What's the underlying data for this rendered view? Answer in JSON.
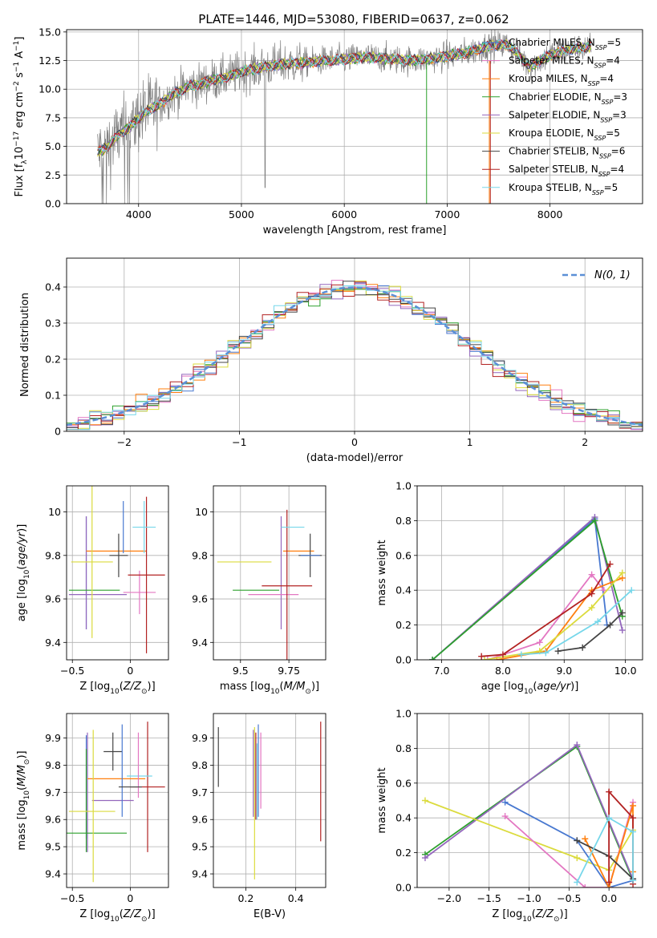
{
  "figure": {
    "title": "PLATE=1446, MJD=53080, FIBERID=0637, z=0.062"
  },
  "chart_data": [
    {
      "id": "spectrum",
      "type": "line",
      "xlabel": "wavelength [Angstrom, rest frame]",
      "ylabel": "Flux [f",
      "xlim": [
        3300,
        8900
      ],
      "ylim": [
        0,
        15.2
      ],
      "xticks": [
        4000,
        5000,
        6000,
        7000,
        8000
      ],
      "yticks": [
        0.0,
        2.5,
        5.0,
        7.5,
        10.0,
        12.5,
        15.0
      ],
      "legend_position": "top-right",
      "series": [
        {
          "name": "Chabrier MILES, N_SSP=5",
          "color": "#4878d0"
        },
        {
          "name": "Salpeter MILES, N_SSP=4",
          "color": "#e377c2"
        },
        {
          "name": "Kroupa MILES, N_SSP=4",
          "color": "#ff7f0e"
        },
        {
          "name": "Chabrier ELODIE, N_SSP=3",
          "color": "#2ca02c"
        },
        {
          "name": "Salpeter ELODIE, N_SSP=3",
          "color": "#9467bd"
        },
        {
          "name": "Kroupa ELODIE, N_SSP=5",
          "color": "#dbdb3d"
        },
        {
          "name": "Chabrier STELIB, N_SSP=6",
          "color": "#444444"
        },
        {
          "name": "Salpeter STELIB, N_SSP=4",
          "color": "#b22222"
        },
        {
          "name": "Kroupa STELIB, N_SSP=5",
          "color": "#76d7ea"
        }
      ],
      "continuum": {
        "x": [
          3600,
          3700,
          3800,
          3900,
          4000,
          4100,
          4200,
          4300,
          4400,
          4500,
          4600,
          4700,
          4800,
          4900,
          5000,
          5200,
          5400,
          5600,
          5800,
          6000,
          6200,
          6400,
          6600,
          6800,
          7000,
          7200,
          7400,
          7600,
          7800,
          8000,
          8200,
          8400
        ],
        "y": [
          4.5,
          5.0,
          6.0,
          6.6,
          7.5,
          8.2,
          8.6,
          9.4,
          9.8,
          10.3,
          10.4,
          10.8,
          10.9,
          11.2,
          11.5,
          11.9,
          12.2,
          12.3,
          12.5,
          12.6,
          12.8,
          12.7,
          12.5,
          12.6,
          12.9,
          13.2,
          13.8,
          13.9,
          12.0,
          13.0,
          13.5,
          13.7
        ]
      }
    },
    {
      "id": "residuals",
      "type": "line",
      "xlabel": "(data-model)/error",
      "ylabel": "Normed distribution",
      "xlim": [
        -2.5,
        2.5
      ],
      "ylim": [
        0,
        0.48
      ],
      "xticks": [
        -2,
        -1,
        0,
        1,
        2
      ],
      "yticks": [
        0.0,
        0.1,
        0.2,
        0.3,
        0.4
      ],
      "legend_position": "top-right",
      "legend_label": "N(0, 1)",
      "reference": {
        "mean": 0,
        "sigma": 1,
        "color": "#5b8fd6"
      },
      "histogram": {
        "bin_width": 0.1,
        "range": [
          -2.5,
          2.5
        ]
      }
    },
    {
      "id": "age_vs_Z",
      "type": "scatter",
      "xlabel": "Z [log",
      "ylabel": "age  [log",
      "xlim": [
        -0.55,
        0.33
      ],
      "ylim": [
        9.32,
        10.12
      ],
      "xticks": [
        -0.5,
        0.0
      ],
      "yticks": [
        9.4,
        9.6,
        9.8,
        10.0
      ],
      "points": [
        {
          "x": -0.38,
          "y": 9.72,
          "xerr": 0.0,
          "yerr": 0.26,
          "color": "#4878d0"
        },
        {
          "x": -0.38,
          "y": 9.72,
          "xerr": 0.0,
          "yerr": 0.26,
          "color": "#9467bd"
        },
        {
          "x": 0.08,
          "y": 9.63,
          "xerr": 0.14,
          "yerr": 0.1,
          "color": "#e377c2"
        },
        {
          "x": -0.12,
          "y": 9.82,
          "xerr": 0.26,
          "yerr": 0.0,
          "color": "#ff7f0e"
        },
        {
          "x": -0.31,
          "y": 9.64,
          "xerr": 0.22,
          "yerr": 0.0,
          "color": "#2ca02c"
        },
        {
          "x": -0.28,
          "y": 9.62,
          "xerr": 0.25,
          "yerr": 0.0,
          "color": "#9467bd"
        },
        {
          "x": -0.33,
          "y": 9.77,
          "xerr": 0.18,
          "yerr": 0.35,
          "color": "#dbdb3d"
        },
        {
          "x": -0.1,
          "y": 9.8,
          "xerr": 0.08,
          "yerr": 0.1,
          "color": "#444444"
        },
        {
          "x": 0.14,
          "y": 9.71,
          "xerr": 0.16,
          "yerr": 0.36,
          "color": "#b22222"
        },
        {
          "x": 0.12,
          "y": 9.93,
          "xerr": 0.1,
          "yerr": 0.12,
          "color": "#76d7ea"
        },
        {
          "x": -0.06,
          "y": 9.93,
          "xerr": 0.0,
          "yerr": 0.12,
          "color": "#4878d0"
        }
      ]
    },
    {
      "id": "age_vs_mass",
      "type": "scatter",
      "xlabel": "mass [log",
      "ylabel": "",
      "xlim": [
        9.36,
        9.94
      ],
      "ylim": [
        9.32,
        10.12
      ],
      "xticks": [
        9.5,
        9.75
      ],
      "yticks": [
        9.4,
        9.6,
        9.8,
        10.0
      ],
      "points": [
        {
          "x": 9.71,
          "y": 9.72,
          "xerr": 0.0,
          "yerr": 0.26,
          "color": "#9467bd"
        },
        {
          "x": 9.8,
          "y": 9.82,
          "xerr": 0.08,
          "yerr": 0.0,
          "color": "#ff7f0e"
        },
        {
          "x": 9.58,
          "y": 9.64,
          "xerr": 0.12,
          "yerr": 0.0,
          "color": "#2ca02c"
        },
        {
          "x": 9.67,
          "y": 9.62,
          "xerr": 0.13,
          "yerr": 0.0,
          "color": "#e377c2"
        },
        {
          "x": 9.52,
          "y": 9.77,
          "xerr": 0.14,
          "yerr": 0.0,
          "color": "#dbdb3d"
        },
        {
          "x": 9.86,
          "y": 9.8,
          "xerr": 0.06,
          "yerr": 0.1,
          "color": "#444444"
        },
        {
          "x": 9.74,
          "y": 9.66,
          "xerr": 0.13,
          "yerr": 0.35,
          "color": "#b22222"
        },
        {
          "x": 9.77,
          "y": 9.93,
          "xerr": 0.06,
          "yerr": 0.0,
          "color": "#76d7ea"
        },
        {
          "x": 9.86,
          "y": 9.8,
          "xerr": 0.05,
          "yerr": 0.0,
          "color": "#4878d0"
        }
      ]
    },
    {
      "id": "weight_vs_age",
      "type": "line",
      "xlabel": "age  [log",
      "ylabel": "mass weight",
      "xlim": [
        6.6,
        10.28
      ],
      "ylim": [
        0,
        1.0
      ],
      "xticks": [
        7,
        8,
        9,
        10
      ],
      "yticks": [
        0.0,
        0.2,
        0.4,
        0.6,
        0.8,
        1.0
      ],
      "series": [
        {
          "color": "#4878d0",
          "x": [
            6.85,
            9.5,
            9.7
          ],
          "y": [
            0.0,
            0.81,
            0.2
          ]
        },
        {
          "color": "#9467bd",
          "x": [
            6.85,
            9.5,
            9.95
          ],
          "y": [
            0.0,
            0.82,
            0.17
          ]
        },
        {
          "color": "#2ca02c",
          "x": [
            6.85,
            9.5,
            9.95
          ],
          "y": [
            0.0,
            0.8,
            0.25
          ]
        },
        {
          "color": "#e377c2",
          "x": [
            7.75,
            8.6,
            9.45,
            9.65
          ],
          "y": [
            0.0,
            0.1,
            0.49,
            0.4
          ]
        },
        {
          "color": "#ff7f0e",
          "x": [
            7.9,
            8.7,
            9.45,
            9.95
          ],
          "y": [
            0.0,
            0.05,
            0.4,
            0.47
          ]
        },
        {
          "color": "#dbdb3d",
          "x": [
            7.7,
            8.6,
            9.45,
            9.95
          ],
          "y": [
            0.0,
            0.05,
            0.3,
            0.5
          ]
        },
        {
          "color": "#444444",
          "x": [
            8.9,
            9.3,
            9.75,
            9.95
          ],
          "y": [
            0.05,
            0.07,
            0.2,
            0.27
          ]
        },
        {
          "color": "#b22222",
          "x": [
            7.65,
            8.0,
            9.45,
            9.75
          ],
          "y": [
            0.02,
            0.03,
            0.38,
            0.55
          ]
        },
        {
          "color": "#76d7ea",
          "x": [
            8.3,
            8.7,
            9.55,
            10.1
          ],
          "y": [
            0.03,
            0.04,
            0.22,
            0.4
          ]
        }
      ]
    },
    {
      "id": "mass_vs_Z",
      "type": "scatter",
      "xlabel": "Z [log",
      "ylabel": "mass [log",
      "xlim": [
        -0.55,
        0.33
      ],
      "ylim": [
        9.35,
        9.99
      ],
      "xticks": [
        -0.5,
        0.0
      ],
      "yticks": [
        9.4,
        9.5,
        9.6,
        9.7,
        9.8,
        9.9
      ],
      "points": [
        {
          "x": -0.38,
          "y": 9.72,
          "xerr": 0.0,
          "yerr": 0.19,
          "color": "#4878d0"
        },
        {
          "x": -0.38,
          "y": 9.67,
          "xerr": 0.0,
          "yerr": 0.19,
          "color": "#2ca02c"
        },
        {
          "x": -0.37,
          "y": 9.7,
          "xerr": 0.0,
          "yerr": 0.22,
          "color": "#9467bd"
        },
        {
          "x": -0.15,
          "y": 9.67,
          "xerr": 0.18,
          "yerr": 0.0,
          "color": "#9467bd"
        },
        {
          "x": -0.12,
          "y": 9.75,
          "xerr": 0.25,
          "yerr": 0.0,
          "color": "#ff7f0e"
        },
        {
          "x": -0.29,
          "y": 9.55,
          "xerr": 0.26,
          "yerr": 0.0,
          "color": "#2ca02c"
        },
        {
          "x": -0.33,
          "y": 9.63,
          "xerr": 0.2,
          "yerr": 0.0,
          "color": "#dbdb3d"
        },
        {
          "x": -0.32,
          "y": 9.65,
          "xerr": 0.0,
          "yerr": 0.28,
          "color": "#dbdb3d"
        },
        {
          "x": -0.15,
          "y": 9.85,
          "xerr": 0.08,
          "yerr": 0.07,
          "color": "#444444"
        },
        {
          "x": 0.15,
          "y": 9.72,
          "xerr": 0.15,
          "yerr": 0.24,
          "color": "#b22222"
        },
        {
          "x": 0.08,
          "y": 9.76,
          "xerr": 0.11,
          "yerr": 0.0,
          "color": "#76d7ea"
        },
        {
          "x": -0.07,
          "y": 9.78,
          "xerr": 0.0,
          "yerr": 0.17,
          "color": "#4878d0"
        },
        {
          "x": 0.07,
          "y": 9.8,
          "xerr": 0.0,
          "yerr": 0.12,
          "color": "#e377c2"
        },
        {
          "x": 0.0,
          "y": 9.72,
          "xerr": 0.1,
          "yerr": 0.0,
          "color": "#444444"
        }
      ]
    },
    {
      "id": "mass_vs_ebv",
      "type": "scatter",
      "xlabel": "E(B-V)",
      "ylabel": "",
      "xlim": [
        0.07,
        0.52
      ],
      "ylim": [
        9.35,
        9.99
      ],
      "xticks": [
        0.2,
        0.4
      ],
      "yticks": [
        9.4,
        9.5,
        9.6,
        9.7,
        9.8,
        9.9
      ],
      "points": [
        {
          "x": 0.09,
          "y": 9.83,
          "xerr": 0.0,
          "yerr": 0.11,
          "color": "#444444"
        },
        {
          "x": 0.23,
          "y": 9.77,
          "xerr": 0.0,
          "yerr": 0.16,
          "color": "#9467bd"
        },
        {
          "x": 0.235,
          "y": 9.66,
          "xerr": 0.0,
          "yerr": 0.28,
          "color": "#dbdb3d"
        },
        {
          "x": 0.24,
          "y": 9.76,
          "xerr": 0.0,
          "yerr": 0.16,
          "color": "#b22222"
        },
        {
          "x": 0.25,
          "y": 9.78,
          "xerr": 0.0,
          "yerr": 0.17,
          "color": "#4878d0"
        },
        {
          "x": 0.26,
          "y": 9.78,
          "xerr": 0.0,
          "yerr": 0.14,
          "color": "#e377c2"
        },
        {
          "x": 0.245,
          "y": 9.74,
          "xerr": 0.0,
          "yerr": 0.14,
          "color": "#76d7ea"
        },
        {
          "x": 0.5,
          "y": 9.74,
          "xerr": 0.0,
          "yerr": 0.22,
          "color": "#b22222"
        }
      ]
    },
    {
      "id": "weight_vs_Z",
      "type": "line",
      "xlabel": "Z [log",
      "ylabel": "mass weight",
      "xlim": [
        -2.4,
        0.42
      ],
      "ylim": [
        0,
        1.0
      ],
      "xticks": [
        -2.0,
        -1.5,
        -1.0,
        -0.5,
        0.0
      ],
      "yticks": [
        0.0,
        0.2,
        0.4,
        0.6,
        0.8,
        1.0
      ],
      "series": [
        {
          "color": "#2ca02c",
          "x": [
            -2.3,
            -0.4,
            0.3
          ],
          "y": [
            0.19,
            0.81,
            0.04
          ]
        },
        {
          "color": "#9467bd",
          "x": [
            -2.3,
            -0.4,
            0.3
          ],
          "y": [
            0.17,
            0.82,
            0.05
          ]
        },
        {
          "color": "#dbdb3d",
          "x": [
            -2.3,
            -0.4,
            0.0,
            0.3
          ],
          "y": [
            0.5,
            0.17,
            0.1,
            0.33
          ]
        },
        {
          "color": "#4878d0",
          "x": [
            -1.3,
            -0.4,
            0.0,
            0.3
          ],
          "y": [
            0.49,
            0.27,
            0.0,
            0.04
          ]
        },
        {
          "color": "#e377c2",
          "x": [
            -1.3,
            -0.3,
            0.0,
            0.3
          ],
          "y": [
            0.41,
            0.0,
            0.0,
            0.49
          ]
        },
        {
          "color": "#ff7f0e",
          "x": [
            -0.3,
            0.0,
            0.3,
            0.3
          ],
          "y": [
            0.28,
            0.0,
            0.47,
            0.09
          ]
        },
        {
          "color": "#444444",
          "x": [
            -0.4,
            0.0,
            0.3
          ],
          "y": [
            0.27,
            0.18,
            0.05
          ]
        },
        {
          "color": "#b22222",
          "x": [
            0.0,
            0.0,
            0.3,
            0.3
          ],
          "y": [
            0.03,
            0.55,
            0.4,
            0.02
          ]
        },
        {
          "color": "#76d7ea",
          "x": [
            -0.4,
            0.0,
            0.3,
            0.3
          ],
          "y": [
            0.03,
            0.4,
            0.32,
            0.04
          ]
        }
      ]
    }
  ]
}
